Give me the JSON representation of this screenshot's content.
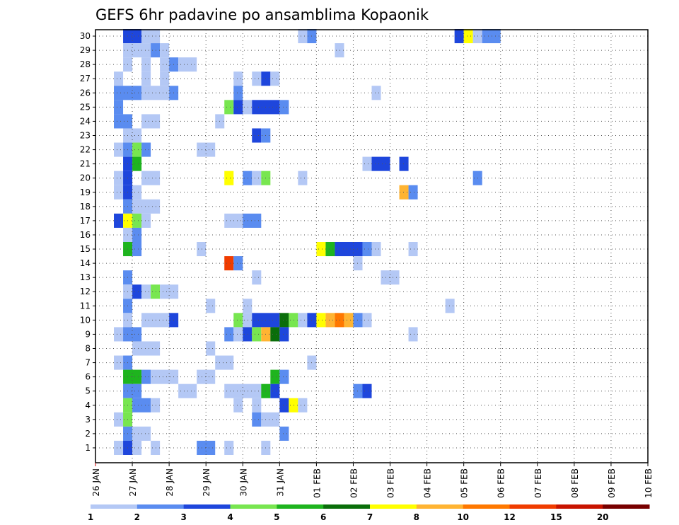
{
  "chart_data": {
    "type": "heatmap",
    "title": "GEFS 6hr padavine po ansamblima Kopaonik",
    "x_tick_labels": [
      "26 JAN",
      "27 JAN",
      "28 JAN",
      "29 JAN",
      "30 JAN",
      "31 JAN",
      "01 FEB",
      "02 FEB",
      "03 FEB",
      "04 FEB",
      "05 FEB",
      "06 FEB",
      "07 FEB",
      "08 FEB",
      "09 FEB",
      "10 FEB"
    ],
    "x_range_days": [
      0,
      15
    ],
    "y_members": [
      1,
      2,
      3,
      4,
      5,
      6,
      7,
      8,
      9,
      10,
      11,
      12,
      13,
      14,
      15,
      16,
      17,
      18,
      19,
      20,
      21,
      22,
      23,
      24,
      25,
      26,
      27,
      28,
      29,
      30
    ],
    "y_tick_labels": [
      "1",
      "2",
      "3",
      "4",
      "5",
      "6",
      "7",
      "8",
      "9",
      "10",
      "11",
      "12",
      "13",
      "14",
      "15",
      "16",
      "17",
      "18",
      "19",
      "20",
      "21",
      "22",
      "23",
      "24",
      "25",
      "26",
      "27",
      "28",
      "29",
      "30"
    ],
    "grid": "dotted",
    "legend": {
      "placement": "bottom",
      "thresholds": [
        "1",
        "2",
        "3",
        "4",
        "5",
        "6",
        "7",
        "8",
        "10",
        "12",
        "15",
        "20"
      ],
      "colors": [
        "#b4c8f5",
        "#5a8cf0",
        "#1e46dc",
        "#78e650",
        "#1eb41e",
        "#0a6e0a",
        "#ffff00",
        "#ffb432",
        "#ff7800",
        "#f03c00",
        "#c81400",
        "#780000"
      ]
    },
    "cells_note": "member, start time slot (6-hourly, 0 = 26 JAN 00Z), run length in slots, class index",
    "cells": [
      [
        30,
        3,
        2,
        2
      ],
      [
        30,
        5,
        2,
        0
      ],
      [
        30,
        22,
        1,
        0
      ],
      [
        30,
        23,
        1,
        1
      ],
      [
        30,
        39,
        1,
        2
      ],
      [
        30,
        40,
        1,
        6
      ],
      [
        30,
        41,
        1,
        0
      ],
      [
        30,
        42,
        2,
        1
      ],
      [
        29,
        3,
        3,
        0
      ],
      [
        29,
        6,
        1,
        1
      ],
      [
        29,
        7,
        1,
        0
      ],
      [
        29,
        26,
        1,
        0
      ],
      [
        28,
        3,
        1,
        0
      ],
      [
        28,
        5,
        1,
        0
      ],
      [
        28,
        7,
        1,
        0
      ],
      [
        28,
        8,
        1,
        1
      ],
      [
        28,
        9,
        2,
        0
      ],
      [
        27,
        2,
        1,
        0
      ],
      [
        27,
        5,
        1,
        0
      ],
      [
        27,
        7,
        1,
        0
      ],
      [
        27,
        15,
        1,
        0
      ],
      [
        27,
        17,
        1,
        0
      ],
      [
        27,
        18,
        1,
        2
      ],
      [
        27,
        19,
        1,
        0
      ],
      [
        26,
        2,
        3,
        1
      ],
      [
        26,
        5,
        3,
        0
      ],
      [
        26,
        8,
        1,
        1
      ],
      [
        26,
        15,
        1,
        1
      ],
      [
        26,
        30,
        1,
        0
      ],
      [
        25,
        2,
        1,
        1
      ],
      [
        25,
        14,
        1,
        3
      ],
      [
        25,
        15,
        1,
        2
      ],
      [
        25,
        16,
        1,
        0
      ],
      [
        25,
        17,
        3,
        2
      ],
      [
        25,
        20,
        1,
        1
      ],
      [
        24,
        2,
        2,
        1
      ],
      [
        24,
        5,
        2,
        0
      ],
      [
        24,
        13,
        1,
        0
      ],
      [
        23,
        3,
        2,
        0
      ],
      [
        23,
        17,
        1,
        2
      ],
      [
        23,
        18,
        1,
        1
      ],
      [
        22,
        2,
        1,
        0
      ],
      [
        22,
        3,
        1,
        1
      ],
      [
        22,
        4,
        1,
        3
      ],
      [
        22,
        5,
        1,
        1
      ],
      [
        22,
        11,
        2,
        0
      ],
      [
        21,
        3,
        1,
        2
      ],
      [
        21,
        4,
        1,
        4
      ],
      [
        21,
        29,
        1,
        0
      ],
      [
        21,
        30,
        2,
        2
      ],
      [
        21,
        33,
        1,
        2
      ],
      [
        20,
        2,
        1,
        0
      ],
      [
        20,
        3,
        1,
        2
      ],
      [
        20,
        5,
        2,
        0
      ],
      [
        20,
        14,
        1,
        6
      ],
      [
        20,
        16,
        1,
        1
      ],
      [
        20,
        17,
        1,
        0
      ],
      [
        20,
        18,
        1,
        3
      ],
      [
        20,
        22,
        1,
        0
      ],
      [
        20,
        41,
        1,
        1
      ],
      [
        19,
        2,
        1,
        0
      ],
      [
        19,
        3,
        1,
        2
      ],
      [
        19,
        4,
        1,
        0
      ],
      [
        19,
        33,
        1,
        7
      ],
      [
        19,
        34,
        1,
        1
      ],
      [
        18,
        3,
        1,
        1
      ],
      [
        18,
        4,
        3,
        0
      ],
      [
        17,
        2,
        1,
        2
      ],
      [
        17,
        3,
        1,
        6
      ],
      [
        17,
        4,
        1,
        3
      ],
      [
        17,
        5,
        1,
        0
      ],
      [
        17,
        14,
        2,
        0
      ],
      [
        17,
        16,
        2,
        1
      ],
      [
        16,
        3,
        1,
        0
      ],
      [
        16,
        4,
        1,
        1
      ],
      [
        15,
        3,
        1,
        4
      ],
      [
        15,
        4,
        1,
        1
      ],
      [
        15,
        11,
        1,
        0
      ],
      [
        15,
        24,
        1,
        6
      ],
      [
        15,
        25,
        1,
        4
      ],
      [
        15,
        26,
        3,
        2
      ],
      [
        15,
        29,
        1,
        1
      ],
      [
        15,
        30,
        1,
        0
      ],
      [
        15,
        34,
        1,
        0
      ],
      [
        14,
        14,
        1,
        9
      ],
      [
        14,
        15,
        1,
        1
      ],
      [
        14,
        28,
        1,
        0
      ],
      [
        13,
        3,
        1,
        1
      ],
      [
        13,
        17,
        1,
        0
      ],
      [
        13,
        31,
        2,
        0
      ],
      [
        12,
        3,
        1,
        0
      ],
      [
        12,
        4,
        1,
        2
      ],
      [
        12,
        5,
        1,
        0
      ],
      [
        12,
        6,
        1,
        3
      ],
      [
        12,
        7,
        2,
        0
      ],
      [
        11,
        3,
        1,
        1
      ],
      [
        11,
        12,
        1,
        0
      ],
      [
        11,
        16,
        1,
        0
      ],
      [
        11,
        38,
        1,
        0
      ],
      [
        10,
        3,
        1,
        0
      ],
      [
        10,
        5,
        3,
        0
      ],
      [
        10,
        8,
        1,
        2
      ],
      [
        10,
        15,
        1,
        3
      ],
      [
        10,
        16,
        1,
        0
      ],
      [
        10,
        17,
        3,
        2
      ],
      [
        10,
        20,
        1,
        5
      ],
      [
        10,
        21,
        1,
        3
      ],
      [
        10,
        22,
        1,
        0
      ],
      [
        10,
        23,
        1,
        2
      ],
      [
        10,
        24,
        1,
        6
      ],
      [
        10,
        25,
        1,
        7
      ],
      [
        10,
        26,
        1,
        8
      ],
      [
        10,
        27,
        1,
        7
      ],
      [
        10,
        28,
        1,
        1
      ],
      [
        10,
        29,
        1,
        0
      ],
      [
        9,
        2,
        1,
        0
      ],
      [
        9,
        3,
        2,
        1
      ],
      [
        9,
        14,
        1,
        1
      ],
      [
        9,
        15,
        1,
        0
      ],
      [
        9,
        16,
        1,
        2
      ],
      [
        9,
        17,
        1,
        3
      ],
      [
        9,
        18,
        1,
        7
      ],
      [
        9,
        19,
        1,
        5
      ],
      [
        9,
        20,
        1,
        2
      ],
      [
        9,
        34,
        1,
        0
      ],
      [
        8,
        4,
        3,
        0
      ],
      [
        8,
        12,
        1,
        0
      ],
      [
        7,
        2,
        1,
        0
      ],
      [
        7,
        3,
        1,
        1
      ],
      [
        7,
        13,
        2,
        0
      ],
      [
        7,
        23,
        1,
        0
      ],
      [
        6,
        3,
        2,
        4
      ],
      [
        6,
        5,
        1,
        1
      ],
      [
        6,
        6,
        3,
        0
      ],
      [
        6,
        11,
        2,
        0
      ],
      [
        6,
        19,
        1,
        4
      ],
      [
        6,
        20,
        1,
        1
      ],
      [
        5,
        3,
        2,
        1
      ],
      [
        5,
        9,
        2,
        0
      ],
      [
        5,
        14,
        4,
        0
      ],
      [
        5,
        18,
        1,
        4
      ],
      [
        5,
        19,
        1,
        2
      ],
      [
        5,
        28,
        1,
        1
      ],
      [
        5,
        29,
        1,
        2
      ],
      [
        4,
        3,
        1,
        3
      ],
      [
        4,
        4,
        2,
        1
      ],
      [
        4,
        6,
        1,
        0
      ],
      [
        4,
        15,
        1,
        0
      ],
      [
        4,
        17,
        1,
        0
      ],
      [
        4,
        20,
        1,
        2
      ],
      [
        4,
        21,
        1,
        6
      ],
      [
        4,
        22,
        1,
        0
      ],
      [
        3,
        2,
        1,
        0
      ],
      [
        3,
        3,
        1,
        3
      ],
      [
        3,
        17,
        1,
        1
      ],
      [
        3,
        18,
        2,
        0
      ],
      [
        2,
        3,
        1,
        1
      ],
      [
        2,
        4,
        2,
        0
      ],
      [
        2,
        20,
        1,
        1
      ],
      [
        1,
        2,
        1,
        0
      ],
      [
        1,
        3,
        1,
        2
      ],
      [
        1,
        4,
        1,
        0
      ],
      [
        1,
        6,
        1,
        0
      ],
      [
        1,
        11,
        2,
        1
      ],
      [
        1,
        14,
        1,
        0
      ],
      [
        1,
        18,
        1,
        0
      ]
    ]
  }
}
